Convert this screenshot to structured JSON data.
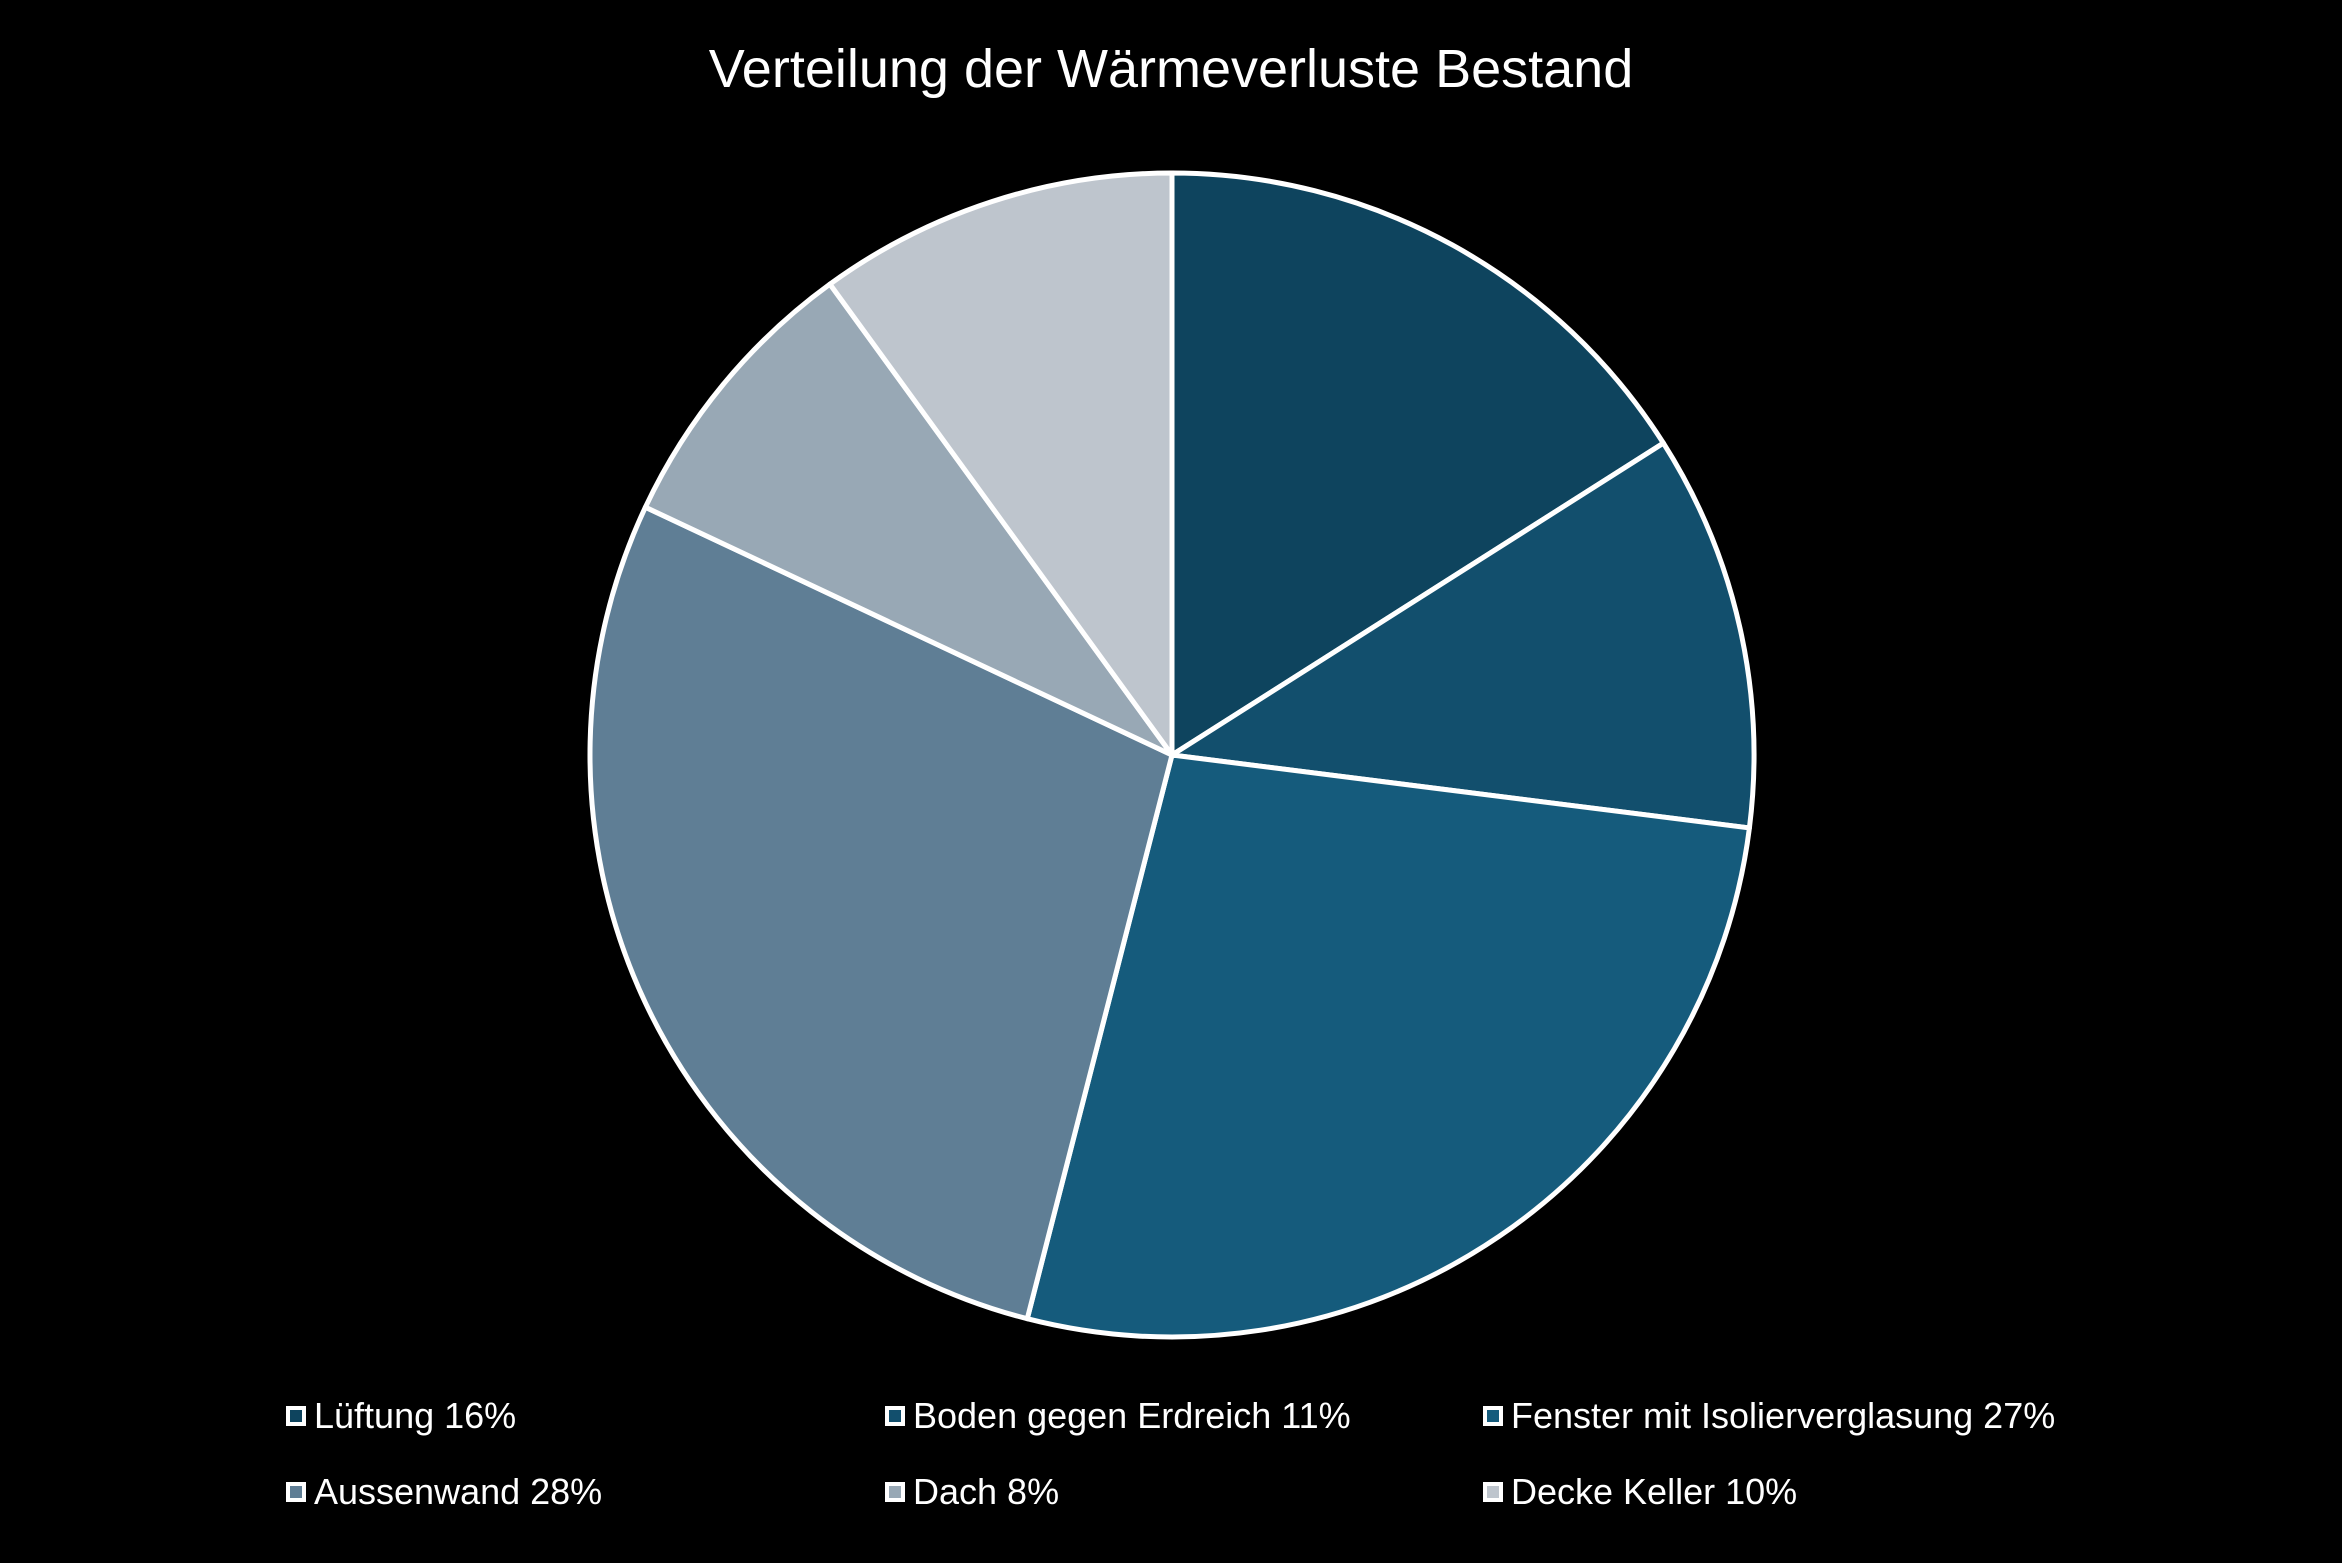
{
  "chart_data": {
    "type": "pie",
    "title": "Verteilung der Wärmeverluste Bestand",
    "slices": [
      {
        "label": "Lüftung",
        "value": 16,
        "legend_text": "Lüftung 16%",
        "color": "#0e445e"
      },
      {
        "label": "Boden gegen Erdreich",
        "value": 11,
        "legend_text": "Boden gegen Erdreich 11%",
        "color": "#124f6d"
      },
      {
        "label": "Fenster mit Isolierverglasung",
        "value": 27,
        "legend_text": "Fenster mit Isolierverglasung 27%",
        "color": "#155b7c"
      },
      {
        "label": "Aussenwand",
        "value": 28,
        "legend_text": "Aussenwand 28%",
        "color": "#5f7e95"
      },
      {
        "label": "Dach",
        "value": 8,
        "legend_text": "Dach 8%",
        "color": "#98a8b5"
      },
      {
        "label": "Decke Keller",
        "value": 10,
        "legend_text": "Decke Keller 10%",
        "color": "#bec5cd"
      }
    ],
    "legend_position": "bottom",
    "slice_border_color": "#ffffff",
    "background_color": "#000000"
  }
}
